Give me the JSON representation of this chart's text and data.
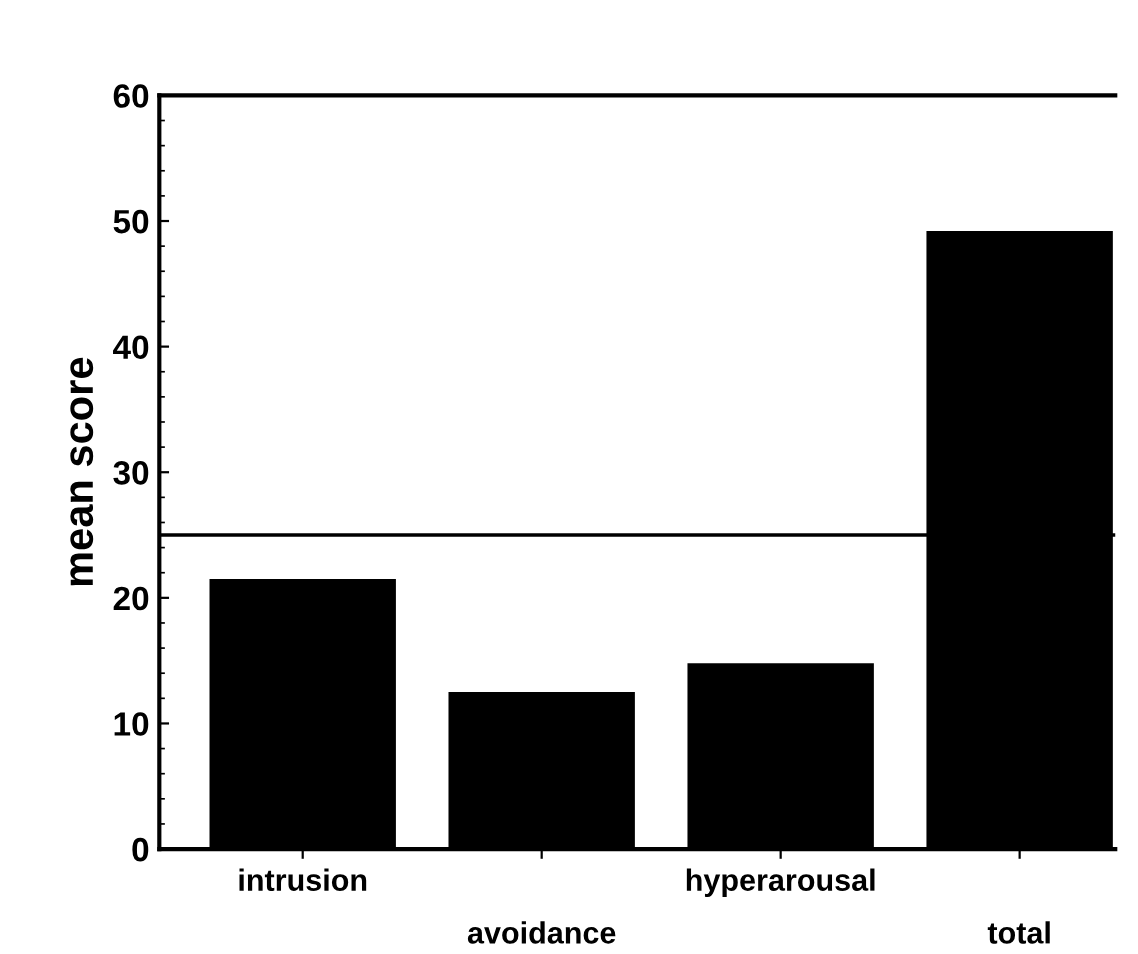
{
  "chart_data": {
    "type": "bar",
    "ylabel": "mean score",
    "categories": [
      "intrusion",
      "avoidance",
      "hyperarousal",
      "total"
    ],
    "values": [
      21.5,
      12.5,
      14.8,
      49.2
    ],
    "color": "#000000",
    "ylim": [
      0,
      60
    ],
    "yticks": [
      0,
      10,
      20,
      30,
      40,
      50,
      60
    ],
    "grid": false,
    "legend": false,
    "ref_lines": [
      {
        "axis": "y",
        "value": 25,
        "color": "#000000"
      }
    ]
  }
}
